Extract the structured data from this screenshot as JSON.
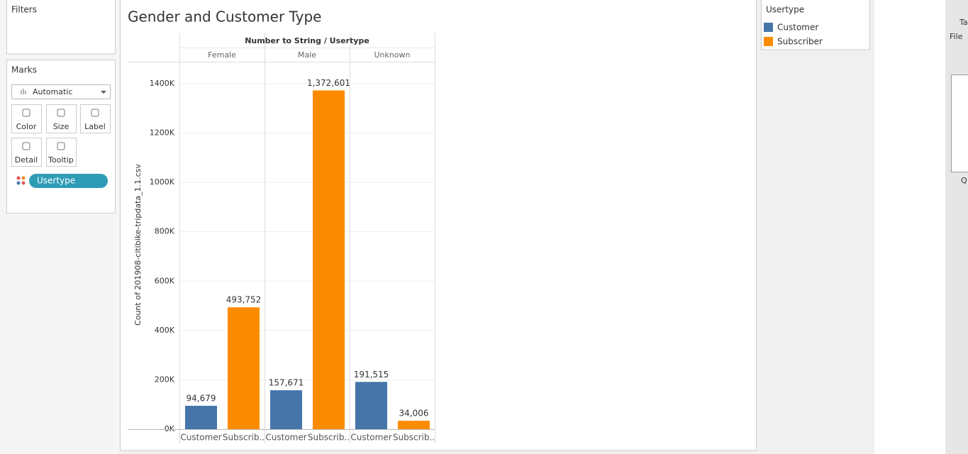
{
  "filters": {
    "title": "Filters"
  },
  "marks": {
    "title": "Marks",
    "mark_type": "Automatic",
    "buttons": [
      "Color",
      "Size",
      "Label",
      "Detail",
      "Tooltip"
    ],
    "pill": "Usertype"
  },
  "legend": {
    "title": "Usertype"
  },
  "right_window": {
    "title": "Ta",
    "menu": "File",
    "label": "Q"
  },
  "chart_data": {
    "type": "bar",
    "title": "Gender and Customer Type",
    "facet_title": "Number to String / Usertype",
    "categories": [
      "Female",
      "Male",
      "Unknown"
    ],
    "x_labels": [
      "Customer",
      "Subscrib.."
    ],
    "y_label": "Count of 201908-citibike-tripdata_1.1.csv",
    "series": [
      {
        "name": "Customer",
        "color": "#4575a9",
        "values": [
          94679,
          157671,
          191515
        ],
        "value_labels": [
          "94,679",
          "157,671",
          "191,515"
        ]
      },
      {
        "name": "Subscriber",
        "color": "#fd8b00",
        "values": [
          493752,
          1372601,
          34006
        ],
        "value_labels": [
          "493,752",
          "1,372,601",
          "34,006"
        ]
      }
    ],
    "ylim": [
      0,
      1486000
    ],
    "yticks": [
      {
        "value": 0,
        "label": "0K"
      },
      {
        "value": 200000,
        "label": "200K"
      },
      {
        "value": 400000,
        "label": "400K"
      },
      {
        "value": 600000,
        "label": "600K"
      },
      {
        "value": 800000,
        "label": "800K"
      },
      {
        "value": 1000000,
        "label": "1000K"
      },
      {
        "value": 1200000,
        "label": "1200K"
      },
      {
        "value": 1400000,
        "label": "1400K"
      }
    ],
    "grid": true
  }
}
